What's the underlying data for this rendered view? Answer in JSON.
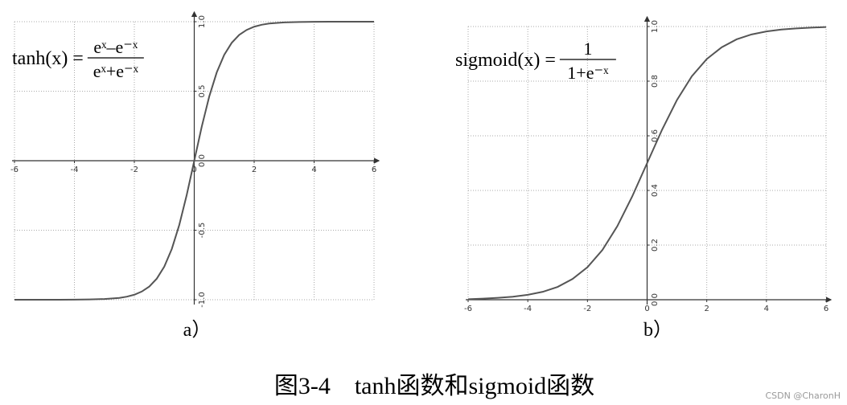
{
  "chart_data": [
    {
      "type": "line",
      "label": "a）",
      "formula": {
        "lhs": "tanh(x) =",
        "numerator": "eˣ–e⁻ˣ",
        "denominator": "eˣ+e⁻ˣ"
      },
      "x": [
        -6,
        -5.5,
        -5,
        -4.5,
        -4,
        -3.5,
        -3,
        -2.5,
        -2.25,
        -2,
        -1.75,
        -1.5,
        -1.25,
        -1,
        -0.75,
        -0.5,
        -0.25,
        0,
        0.25,
        0.5,
        0.75,
        1,
        1.25,
        1.5,
        1.75,
        2,
        2.25,
        2.5,
        3,
        3.5,
        4,
        4.5,
        5,
        5.5,
        6
      ],
      "series": [
        {
          "name": "tanh",
          "color": "#555555",
          "values": [
            -1,
            -1,
            -1,
            -1,
            -0.999,
            -0.998,
            -0.995,
            -0.987,
            -0.978,
            -0.964,
            -0.941,
            -0.905,
            -0.848,
            -0.762,
            -0.635,
            -0.462,
            -0.245,
            0,
            0.245,
            0.462,
            0.635,
            0.762,
            0.848,
            0.905,
            0.941,
            0.964,
            0.978,
            0.987,
            0.995,
            0.998,
            0.999,
            1,
            1,
            1,
            1
          ]
        }
      ],
      "xlim": [
        -6,
        6
      ],
      "xticks": [
        -6,
        -4,
        -2,
        0,
        2,
        4,
        6
      ],
      "ylim": [
        -1,
        1
      ],
      "yticks": [
        {
          "value": -1,
          "label": "-1.0"
        },
        -0.5,
        {
          "value": 0,
          "label": "0.0"
        },
        0.5,
        {
          "value": 1,
          "label": "1.0"
        }
      ],
      "grid": true
    },
    {
      "type": "line",
      "label": "b）",
      "formula": {
        "lhs": "sigmoid(x) =",
        "numerator": "1",
        "denominator": "1+e⁻ˣ"
      },
      "x": [
        -6,
        -5.5,
        -5,
        -4.5,
        -4,
        -3.5,
        -3,
        -2.5,
        -2,
        -1.5,
        -1,
        -0.5,
        0,
        0.5,
        1,
        1.5,
        2,
        2.5,
        3,
        3.5,
        4,
        4.5,
        5,
        5.5,
        6
      ],
      "series": [
        {
          "name": "sigmoid",
          "color": "#555555",
          "values": [
            0.002,
            0.004,
            0.007,
            0.011,
            0.018,
            0.029,
            0.047,
            0.076,
            0.119,
            0.182,
            0.269,
            0.378,
            0.5,
            0.622,
            0.731,
            0.818,
            0.881,
            0.924,
            0.953,
            0.971,
            0.982,
            0.989,
            0.993,
            0.996,
            0.998
          ]
        }
      ],
      "xlim": [
        -6,
        6
      ],
      "xticks": [
        -6,
        -4,
        -2,
        0,
        2,
        4,
        6
      ],
      "ylim": [
        0,
        1
      ],
      "yticks": [
        {
          "value": 0,
          "label": "0.0"
        },
        0.2,
        0.4,
        0.6,
        0.8,
        {
          "value": 1,
          "label": "1.0"
        }
      ],
      "grid": true
    }
  ],
  "caption": "图3-4　tanh函数和sigmoid函数",
  "watermark": "CSDN @CharonH"
}
